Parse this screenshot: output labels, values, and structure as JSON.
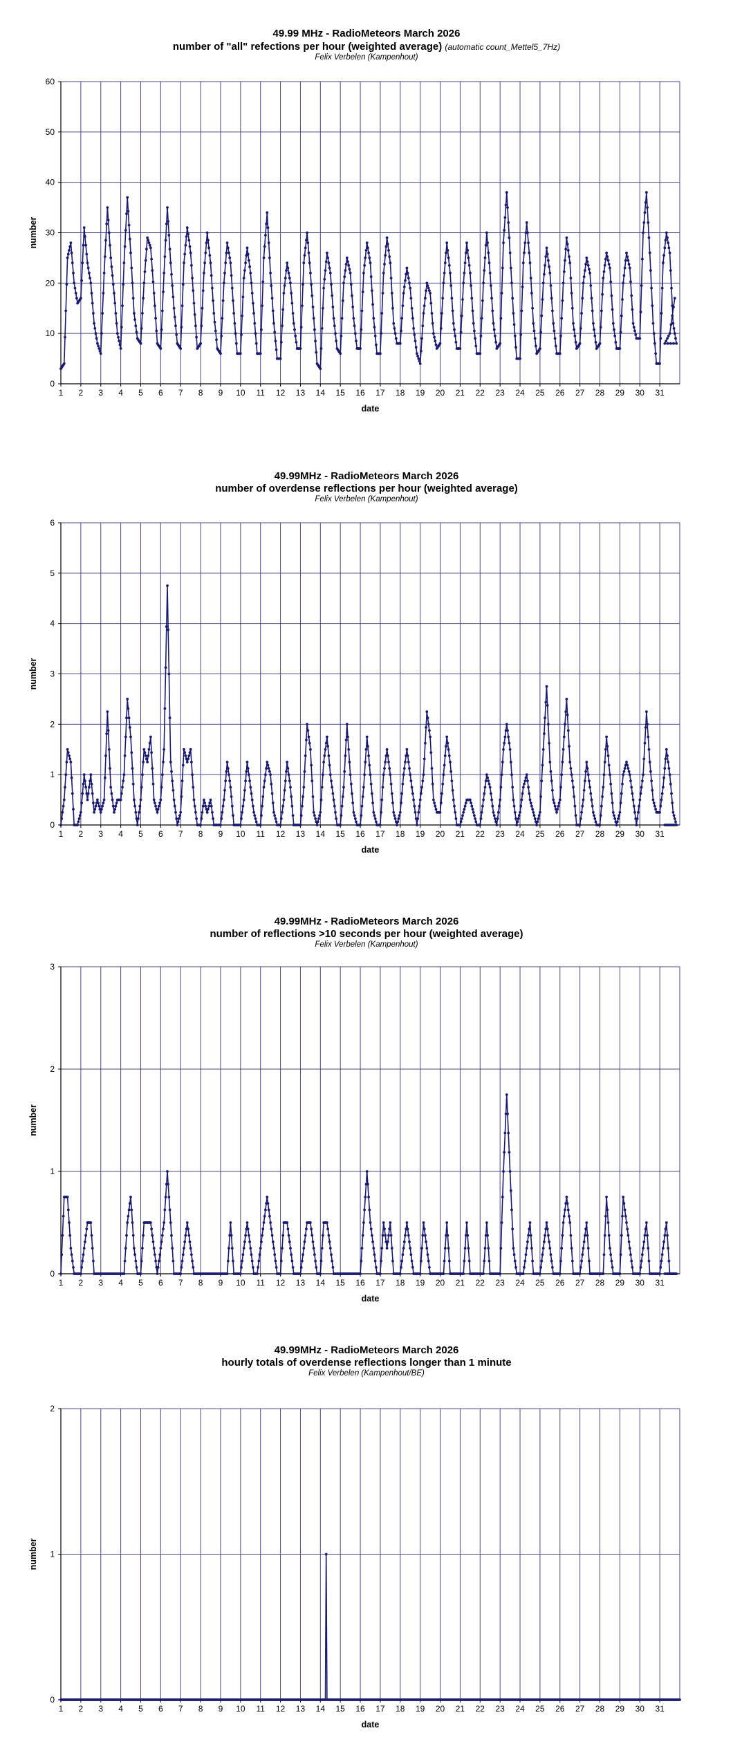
{
  "chart_data": [
    {
      "type": "line",
      "title": "49.99 MHz - RadioMeteors March 2026",
      "subtitle": "number of \"all\" refections per hour (weighted average)",
      "subtitle_note": "(automatic count_Mettel5_7Hz)",
      "author": "Felix Verbelen (Kampenhout)",
      "xlabel": "date",
      "ylabel": "number",
      "xlim": [
        1,
        32
      ],
      "ylim": [
        0,
        60
      ],
      "yticks": [
        0,
        10,
        20,
        30,
        40,
        50,
        60
      ],
      "xticks": [
        "1",
        "2",
        "3",
        "4",
        "5",
        "6",
        "7",
        "8",
        "9",
        "10",
        "11",
        "12",
        "13",
        "14",
        "15",
        "16",
        "17",
        "18",
        "19",
        "20",
        "21",
        "22",
        "23",
        "24",
        "25",
        "26",
        "27",
        "28",
        "29",
        "30",
        "31"
      ],
      "grid": true,
      "series_color": "#1a1a6e",
      "series": [
        {
          "values_per_day": [
            [
              3,
              4,
              25,
              28,
              20,
              16
            ],
            [
              17,
              31,
              24,
              20,
              12,
              8
            ],
            [
              6,
              22,
              35,
              25,
              18,
              10
            ],
            [
              7,
              24,
              37,
              26,
              14,
              9
            ],
            [
              8,
              20,
              29,
              27,
              18,
              8
            ],
            [
              7,
              22,
              35,
              24,
              15,
              8
            ],
            [
              7,
              24,
              31,
              26,
              16,
              7
            ],
            [
              8,
              22,
              30,
              24,
              14,
              7
            ],
            [
              6,
              20,
              28,
              24,
              14,
              6
            ],
            [
              6,
              21,
              27,
              22,
              14,
              6
            ],
            [
              6,
              25,
              34,
              22,
              12,
              5
            ],
            [
              5,
              18,
              24,
              20,
              12,
              7
            ],
            [
              7,
              24,
              30,
              22,
              13,
              4
            ],
            [
              3,
              19,
              26,
              22,
              13,
              7
            ],
            [
              6,
              20,
              25,
              22,
              13,
              7
            ],
            [
              7,
              22,
              28,
              24,
              13,
              6
            ],
            [
              6,
              22,
              29,
              24,
              12,
              8
            ],
            [
              8,
              18,
              23,
              19,
              11,
              6
            ],
            [
              4,
              14,
              20,
              18,
              10,
              7
            ],
            [
              8,
              20,
              28,
              22,
              12,
              7
            ],
            [
              7,
              20,
              28,
              22,
              12,
              6
            ],
            [
              6,
              20,
              30,
              22,
              12,
              7
            ],
            [
              8,
              28,
              38,
              26,
              14,
              5
            ],
            [
              5,
              24,
              32,
              24,
              12,
              6
            ],
            [
              7,
              20,
              27,
              22,
              12,
              6
            ],
            [
              6,
              20,
              29,
              24,
              12,
              7
            ],
            [
              8,
              20,
              25,
              22,
              12,
              7
            ],
            [
              8,
              21,
              26,
              23,
              12,
              7
            ],
            [
              7,
              20,
              26,
              23,
              12,
              9
            ],
            [
              9,
              30,
              38,
              26,
              12,
              4
            ],
            [
              4,
              24,
              30,
              26,
              12,
              8
            ]
          ],
          "values_final": [
            8,
            10,
            17
          ]
        }
      ]
    },
    {
      "type": "line",
      "title": "49.99MHz - RadioMeteors March 2026",
      "subtitle": "number of overdense reflections per hour (weighted average)",
      "author": "Felix Verbelen (Kampenhout)",
      "xlabel": "date",
      "ylabel": "number",
      "xlim": [
        1,
        32
      ],
      "ylim": [
        0,
        6
      ],
      "yticks": [
        0,
        1,
        2,
        3,
        4,
        5,
        6
      ],
      "xticks": [
        "1",
        "2",
        "3",
        "4",
        "5",
        "6",
        "7",
        "8",
        "9",
        "10",
        "11",
        "12",
        "13",
        "14",
        "15",
        "16",
        "17",
        "18",
        "19",
        "20",
        "21",
        "22",
        "23",
        "24",
        "25",
        "26",
        "27",
        "28",
        "29",
        "30",
        "31"
      ],
      "grid": true,
      "series_color": "#1a1a6e",
      "series": [
        {
          "values_per_day": [
            [
              0,
              0.5,
              1.5,
              1.25,
              0,
              0
            ],
            [
              0.25,
              1,
              0.5,
              1,
              0.25,
              0.5
            ],
            [
              0.25,
              0.5,
              2.25,
              0.75,
              0.25,
              0.5
            ],
            [
              0.5,
              1,
              2.5,
              1.75,
              0.5,
              0
            ],
            [
              0.5,
              1.5,
              1.25,
              1.75,
              0.5,
              0.25
            ],
            [
              0.5,
              1.5,
              4.75,
              1.25,
              0.5,
              0
            ],
            [
              0.25,
              1.5,
              1.25,
              1.5,
              0.5,
              0
            ],
            [
              0,
              0.5,
              0.25,
              0.5,
              0,
              0
            ],
            [
              0,
              0.5,
              1.25,
              0.75,
              0,
              0
            ],
            [
              0,
              0.5,
              1.25,
              0.75,
              0.25,
              0
            ],
            [
              0,
              0.75,
              1.25,
              1,
              0.25,
              0
            ],
            [
              0,
              0.5,
              1.25,
              0.75,
              0,
              0
            ],
            [
              0,
              0.75,
              2,
              1.5,
              0.25,
              0
            ],
            [
              0.25,
              1.25,
              1.75,
              1,
              0.5,
              0
            ],
            [
              0,
              0.75,
              2,
              1,
              0.25,
              0
            ],
            [
              0,
              0.75,
              1.75,
              1,
              0.25,
              0
            ],
            [
              0,
              1,
              1.5,
              1,
              0.25,
              0
            ],
            [
              0.25,
              1,
              1.5,
              1,
              0.5,
              0
            ],
            [
              0.5,
              1,
              2.25,
              1.75,
              0.5,
              0.25
            ],
            [
              0.25,
              1,
              1.75,
              1.25,
              0.5,
              0
            ],
            [
              0,
              0.25,
              0.5,
              0.5,
              0.25,
              0
            ],
            [
              0,
              0.5,
              1,
              0.75,
              0.25,
              0
            ],
            [
              0.5,
              1.5,
              2,
              1.5,
              0.5,
              0
            ],
            [
              0.25,
              0.75,
              1,
              0.5,
              0.25,
              0
            ],
            [
              0.25,
              1.5,
              2.75,
              1.25,
              0.5,
              0.25
            ],
            [
              0.5,
              1.5,
              2.5,
              1.25,
              0.75,
              0
            ],
            [
              0,
              0.5,
              1.25,
              0.75,
              0.25,
              0
            ],
            [
              0,
              0.75,
              1.75,
              1,
              0.25,
              0
            ],
            [
              0.25,
              1,
              1.25,
              1,
              0.5,
              0
            ],
            [
              0.5,
              1,
              2.25,
              1.25,
              0.5,
              0.25
            ],
            [
              0.25,
              0.75,
              1.5,
              1,
              0.25,
              0
            ]
          ],
          "values_final": [
            0,
            0,
            0
          ]
        }
      ]
    },
    {
      "type": "line",
      "title": "49.99MHz - RadioMeteors March 2026",
      "subtitle": "number of reflections >10 seconds per hour (weighted average)",
      "author": "Felix Verbelen (Kampenhout)",
      "xlabel": "date",
      "ylabel": "number",
      "xlim": [
        1,
        32
      ],
      "ylim": [
        0,
        3
      ],
      "yticks": [
        0,
        1,
        2,
        3
      ],
      "xticks": [
        "1",
        "2",
        "3",
        "4",
        "5",
        "6",
        "7",
        "8",
        "9",
        "10",
        "11",
        "12",
        "13",
        "14",
        "15",
        "16",
        "17",
        "18",
        "19",
        "20",
        "21",
        "22",
        "23",
        "24",
        "25",
        "26",
        "27",
        "28",
        "29",
        "30",
        "31"
      ],
      "grid": true,
      "series_color": "#1a1a6e",
      "series": [
        {
          "values_per_day": [
            [
              0,
              0.75,
              0.75,
              0.25,
              0,
              0
            ],
            [
              0,
              0.25,
              0.5,
              0.5,
              0,
              0
            ],
            [
              0,
              0,
              0,
              0,
              0,
              0
            ],
            [
              0,
              0,
              0.5,
              0.75,
              0.25,
              0
            ],
            [
              0,
              0.5,
              0.5,
              0.5,
              0.25,
              0
            ],
            [
              0.25,
              0.5,
              1,
              0.5,
              0,
              0
            ],
            [
              0,
              0.25,
              0.5,
              0.25,
              0,
              0
            ],
            [
              0,
              0,
              0,
              0,
              0,
              0
            ],
            [
              0,
              0,
              0,
              0.5,
              0,
              0
            ],
            [
              0,
              0.25,
              0.5,
              0.25,
              0,
              0
            ],
            [
              0.25,
              0.5,
              0.75,
              0.5,
              0.25,
              0
            ],
            [
              0,
              0.5,
              0.5,
              0.25,
              0,
              0
            ],
            [
              0,
              0.25,
              0.5,
              0.5,
              0.25,
              0
            ],
            [
              0,
              0.5,
              0.5,
              0.25,
              0,
              0
            ],
            [
              0,
              0,
              0,
              0,
              0,
              0
            ],
            [
              0,
              0.5,
              1,
              0.5,
              0.25,
              0
            ],
            [
              0,
              0.5,
              0.25,
              0.5,
              0,
              0
            ],
            [
              0,
              0.25,
              0.5,
              0.25,
              0,
              0
            ],
            [
              0,
              0.5,
              0.25,
              0,
              0,
              0
            ],
            [
              0,
              0,
              0.5,
              0,
              0,
              0
            ],
            [
              0,
              0,
              0.5,
              0,
              0,
              0
            ],
            [
              0,
              0,
              0.5,
              0,
              0,
              0
            ],
            [
              0,
              1,
              1.75,
              1,
              0.25,
              0
            ],
            [
              0,
              0,
              0.25,
              0.5,
              0,
              0
            ],
            [
              0,
              0.25,
              0.5,
              0.25,
              0,
              0
            ],
            [
              0,
              0.5,
              0.75,
              0.5,
              0,
              0
            ],
            [
              0,
              0.25,
              0.5,
              0,
              0,
              0
            ],
            [
              0,
              0,
              0.75,
              0.25,
              0,
              0
            ],
            [
              0,
              0.75,
              0.5,
              0.25,
              0,
              0
            ],
            [
              0,
              0.25,
              0.5,
              0,
              0,
              0
            ],
            [
              0,
              0.25,
              0.5,
              0,
              0,
              0
            ]
          ],
          "values_final": [
            0,
            0,
            0
          ]
        }
      ]
    },
    {
      "type": "line",
      "title": "49.99MHz - RadioMeteors March 2026",
      "subtitle": "hourly totals of overdense reflections longer than 1 minute",
      "author": "Felix Verbelen (Kampenhout/BE)",
      "xlabel": "date",
      "ylabel": "number",
      "xlim": [
        1,
        32
      ],
      "ylim": [
        0,
        2
      ],
      "yticks": [
        0,
        1,
        2
      ],
      "xticks": [
        "1",
        "2",
        "3",
        "4",
        "5",
        "6",
        "7",
        "8",
        "9",
        "10",
        "11",
        "12",
        "13",
        "14",
        "15",
        "16",
        "17",
        "18",
        "19",
        "20",
        "21",
        "22",
        "23",
        "24",
        "25",
        "26",
        "27",
        "28",
        "29",
        "30",
        "31"
      ],
      "grid": true,
      "series_color": "#1a1a6e",
      "series": [
        {
          "spikes": [
            {
              "x": 14.3,
              "y": 1
            }
          ],
          "baseline": 0
        }
      ]
    }
  ]
}
